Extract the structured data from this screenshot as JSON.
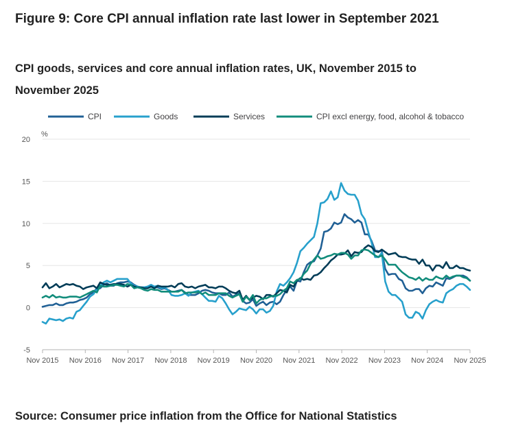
{
  "figure_title": "Figure 9: Core CPI annual inflation rate last lower in September 2021",
  "source_text": "Source: Consumer price inflation from the Office for National Statistics",
  "chart_data": {
    "type": "line",
    "title": "CPI goods, services and core annual inflation rates, UK, November 2015 to November 2025",
    "xlabel": "",
    "ylabel": "%",
    "ylim": [
      -5,
      20
    ],
    "yticks": [
      20,
      15,
      10,
      5,
      0,
      -5
    ],
    "grid": true,
    "legend_position": "top",
    "x_start": "2015-11",
    "x_end": "2025-11",
    "xticks": [
      "Nov 2015",
      "Nov 2016",
      "Nov 2017",
      "Nov 2018",
      "Nov 2019",
      "Nov 2020",
      "Nov 2021",
      "Nov 2022",
      "Nov 2023",
      "Nov 2024",
      "Nov 2025"
    ],
    "series": [
      {
        "name": "CPI",
        "color": "#206095",
        "values": [
          0.1,
          0.2,
          0.3,
          0.3,
          0.5,
          0.3,
          0.3,
          0.5,
          0.6,
          0.6,
          0.7,
          0.9,
          1.0,
          1.2,
          1.6,
          1.8,
          2.3,
          2.3,
          2.7,
          2.9,
          2.6,
          2.6,
          2.9,
          3.0,
          3.0,
          3.1,
          3.0,
          2.7,
          2.5,
          2.4,
          2.4,
          2.5,
          2.7,
          2.4,
          2.4,
          2.2,
          2.3,
          2.1,
          1.9,
          1.9,
          2.0,
          2.1,
          1.8,
          1.5,
          1.5,
          1.5,
          1.7,
          2.0,
          2.1,
          2.0,
          1.8,
          1.7,
          1.7,
          1.5,
          1.5,
          1.8,
          1.3,
          1.5,
          1.7,
          0.8,
          0.5,
          0.6,
          1.0,
          0.2,
          0.5,
          0.7,
          0.3,
          0.6,
          0.7,
          0.4,
          0.7,
          1.5,
          2.1,
          2.5,
          2.0,
          3.2,
          3.1,
          4.2,
          5.1,
          5.4,
          5.5,
          6.2,
          7.0,
          9.0,
          9.1,
          9.4,
          10.1,
          9.9,
          10.1,
          11.1,
          10.7,
          10.5,
          10.1,
          10.4,
          10.1,
          8.7,
          8.7,
          7.9,
          6.8,
          6.7,
          6.7,
          4.6,
          3.9,
          4.0,
          4.0,
          3.4,
          3.2,
          2.3,
          2.0,
          2.0,
          2.2,
          2.2,
          1.7,
          2.3,
          2.6,
          2.5,
          3.0,
          2.8,
          2.6,
          3.5,
          3.4,
          3.6,
          3.8,
          3.8,
          3.8,
          3.6,
          3.2
        ]
      },
      {
        "name": "Goods",
        "color": "#27a0cc",
        "values": [
          -1.7,
          -1.9,
          -1.3,
          -1.4,
          -1.5,
          -1.4,
          -1.6,
          -1.3,
          -1.2,
          -1.3,
          -0.5,
          -0.3,
          0.2,
          0.7,
          1.3,
          1.6,
          2.2,
          2.6,
          3.0,
          3.2,
          3.0,
          3.2,
          3.4,
          3.4,
          3.4,
          3.4,
          2.9,
          2.6,
          2.5,
          2.4,
          2.4,
          2.5,
          2.7,
          2.5,
          2.6,
          2.3,
          2.4,
          2.1,
          1.5,
          1.4,
          1.4,
          1.5,
          1.7,
          1.4,
          1.8,
          1.9,
          2.0,
          1.6,
          1.2,
          0.8,
          0.8,
          0.7,
          1.4,
          1.1,
          0.5,
          -0.2,
          -0.8,
          -0.5,
          -0.1,
          -0.2,
          -0.3,
          0.1,
          -0.2,
          -0.7,
          -0.2,
          -0.2,
          -0.6,
          -0.4,
          0.2,
          1.9,
          2.8,
          2.6,
          3.0,
          3.5,
          4.2,
          5.3,
          6.7,
          7.1,
          7.6,
          8.0,
          8.4,
          10.0,
          12.4,
          12.5,
          12.9,
          13.8,
          12.8,
          13.1,
          14.8,
          13.9,
          13.5,
          13.4,
          13.4,
          12.7,
          11.1,
          10.5,
          9.0,
          7.7,
          6.0,
          6.0,
          6.5,
          3.1,
          1.9,
          1.5,
          1.5,
          1.1,
          0.7,
          -0.8,
          -1.2,
          -1.2,
          -0.5,
          -0.7,
          -1.3,
          -0.3,
          0.4,
          0.7,
          0.9,
          0.7,
          0.6,
          1.7,
          2.0,
          2.2,
          2.6,
          2.8,
          2.8,
          2.5,
          2.1
        ]
      },
      {
        "name": "Services",
        "color": "#003c57",
        "values": [
          2.4,
          2.9,
          2.3,
          2.5,
          2.8,
          2.4,
          2.6,
          2.8,
          2.7,
          2.8,
          2.6,
          2.5,
          2.2,
          2.4,
          2.5,
          2.6,
          2.3,
          3.0,
          2.8,
          2.7,
          2.7,
          2.8,
          2.8,
          2.8,
          2.7,
          2.5,
          2.7,
          2.5,
          2.4,
          2.4,
          2.3,
          2.3,
          2.5,
          2.3,
          2.6,
          2.5,
          2.5,
          2.5,
          2.6,
          2.4,
          2.8,
          2.9,
          2.5,
          2.4,
          2.5,
          2.3,
          2.5,
          2.6,
          2.7,
          2.4,
          2.4,
          2.3,
          2.5,
          2.5,
          2.3,
          2.0,
          1.8,
          1.7,
          2.0,
          0.9,
          1.4,
          0.9,
          1.2,
          1.4,
          1.3,
          1.0,
          1.5,
          1.5,
          1.3,
          1.7,
          2.1,
          2.0,
          1.8,
          2.7,
          2.5,
          3.2,
          3.5,
          3.3,
          3.4,
          3.3,
          3.8,
          3.9,
          4.2,
          4.7,
          5.1,
          5.6,
          5.9,
          6.3,
          6.3,
          6.4,
          6.8,
          6.1,
          6.6,
          6.5,
          6.6,
          7.1,
          7.4,
          7.2,
          6.7,
          6.6,
          6.9,
          6.6,
          6.3,
          6.4,
          6.5,
          6.1,
          6.0,
          6.0,
          5.8,
          5.7,
          5.7,
          5.2,
          5.7,
          5.0,
          5.0,
          4.4,
          5.0,
          5.0,
          4.7,
          5.4,
          4.7,
          4.7,
          5.0,
          4.7,
          4.7,
          4.5,
          4.4
        ]
      },
      {
        "name": "CPI excl energy, food, alcohol & tobacco",
        "color": "#118c7b",
        "values": [
          1.2,
          1.4,
          1.2,
          1.5,
          1.2,
          1.3,
          1.2,
          1.2,
          1.3,
          1.3,
          1.3,
          1.2,
          1.4,
          1.6,
          1.8,
          2.0,
          1.8,
          2.6,
          2.5,
          2.5,
          2.6,
          2.7,
          2.7,
          2.6,
          2.5,
          2.8,
          2.7,
          2.3,
          2.4,
          2.3,
          2.1,
          2.0,
          2.2,
          2.1,
          2.1,
          1.9,
          1.9,
          1.9,
          1.9,
          1.9,
          1.9,
          2.1,
          1.7,
          1.8,
          1.8,
          1.8,
          1.9,
          1.6,
          1.8,
          1.5,
          1.5,
          1.5,
          1.7,
          1.7,
          1.7,
          1.4,
          1.2,
          1.4,
          1.6,
          0.7,
          1.3,
          0.9,
          1.5,
          0.5,
          0.9,
          1.1,
          1.1,
          1.3,
          1.4,
          1.4,
          1.6,
          2.0,
          2.3,
          3.1,
          2.9,
          3.3,
          3.4,
          4.0,
          4.4,
          5.2,
          5.7,
          6.2,
          5.8,
          5.9,
          6.1,
          6.2,
          6.4,
          6.3,
          6.5,
          6.5,
          6.3,
          5.8,
          6.2,
          6.2,
          6.8,
          6.9,
          6.8,
          6.5,
          6.2,
          6.0,
          6.2,
          5.7,
          5.1,
          5.1,
          5.1,
          4.6,
          4.2,
          3.9,
          3.6,
          3.5,
          3.3,
          3.6,
          3.2,
          3.5,
          3.3,
          3.3,
          3.7,
          3.5,
          3.4,
          3.8,
          3.5,
          3.7,
          3.8,
          3.8,
          3.6,
          3.5,
          3.2
        ]
      }
    ]
  }
}
